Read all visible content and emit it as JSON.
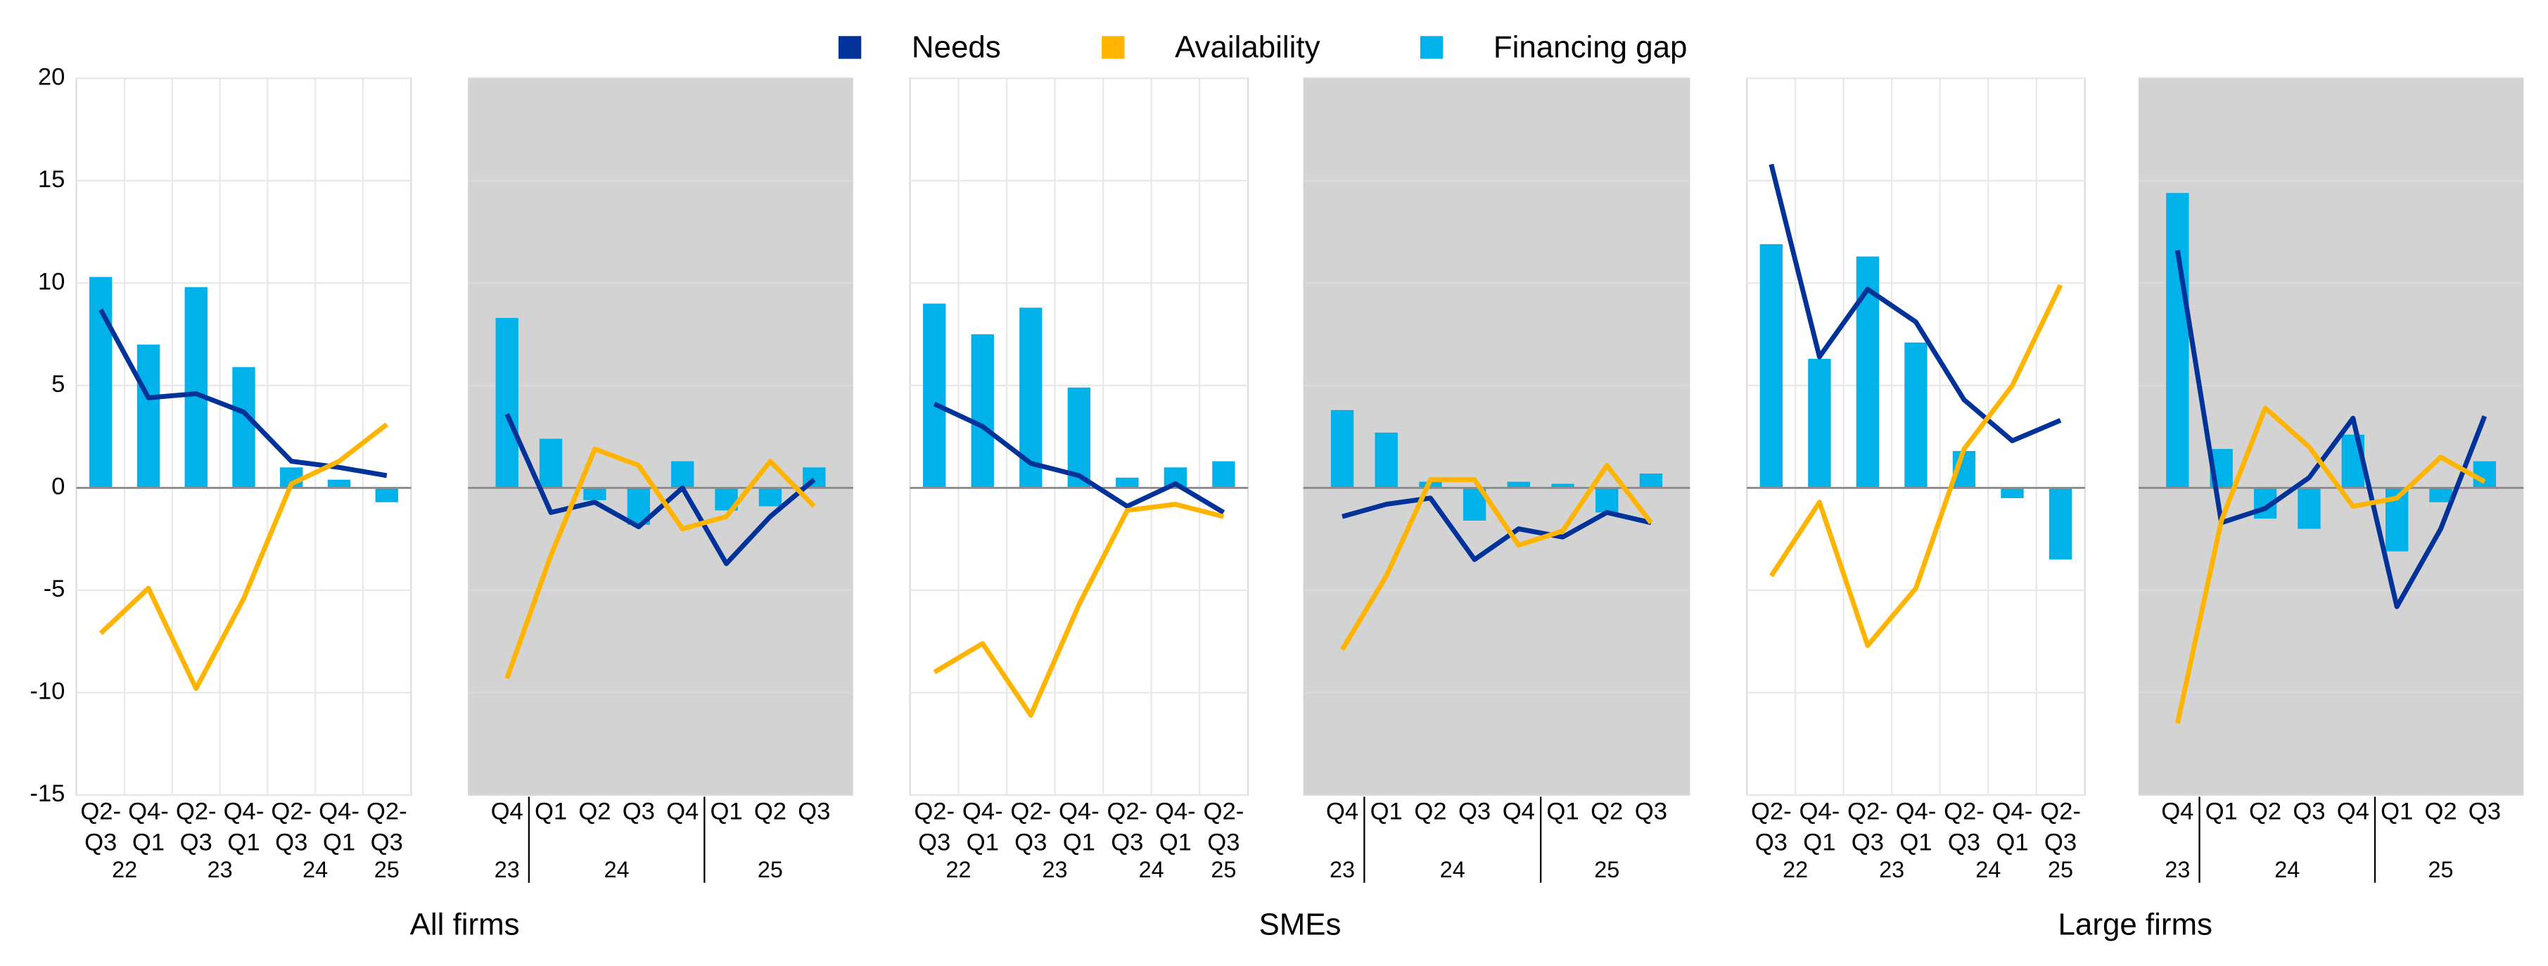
{
  "chart_data": {
    "type": "bar-line",
    "series": [
      {
        "name": "Needs",
        "color": "#003299",
        "mark": "line"
      },
      {
        "name": "Availability",
        "color": "#ffb400",
        "mark": "line"
      },
      {
        "name": "Financing gap",
        "color": "#00b1ea",
        "mark": "bar"
      }
    ],
    "ylim": [
      -15,
      20
    ],
    "yticks": [
      -15,
      -10,
      -5,
      0,
      5,
      10,
      15,
      20
    ],
    "grid": true,
    "groups": [
      {
        "title": "All firms",
        "panels": [
          {
            "shaded": false,
            "dividers": false,
            "categories": [
              [
                "Q2-",
                "Q3"
              ],
              [
                "Q4-",
                "Q1"
              ],
              [
                "Q2-",
                "Q3"
              ],
              [
                "Q4-",
                "Q1"
              ],
              [
                "Q2-",
                "Q3"
              ],
              [
                "Q4-",
                "Q1"
              ],
              [
                "Q2-",
                "Q3"
              ]
            ],
            "years": [
              "22",
              null,
              "23",
              null,
              "24",
              null,
              "25"
            ],
            "values": [
              [
                8.7,
                4.4,
                4.6,
                3.7,
                1.3,
                1.0,
                0.6
              ],
              [
                -7.1,
                -4.9,
                -9.8,
                -5.4,
                0.2,
                1.3,
                3.1
              ],
              [
                10.3,
                7.0,
                9.8,
                5.9,
                1.0,
                0.4,
                -0.7
              ]
            ]
          },
          {
            "shaded": true,
            "dividers": true,
            "categories": [
              [
                "Q4"
              ],
              [
                "Q1"
              ],
              [
                "Q2"
              ],
              [
                "Q3"
              ],
              [
                "Q4"
              ],
              [
                "Q1"
              ],
              [
                "Q2"
              ],
              [
                "Q3"
              ]
            ],
            "years": [
              "23",
              "24",
              null,
              null,
              null,
              "25",
              null,
              null
            ],
            "values": [
              [
                3.6,
                -1.2,
                -0.7,
                -1.9,
                0.0,
                -3.7,
                -1.4,
                0.4
              ],
              [
                -9.3,
                -3.3,
                1.9,
                1.1,
                -2.0,
                -1.4,
                1.3,
                -0.9
              ],
              [
                8.3,
                2.4,
                -0.6,
                -1.8,
                1.3,
                -1.1,
                -0.9,
                1.0
              ]
            ]
          }
        ]
      },
      {
        "title": "SMEs",
        "panels": [
          {
            "shaded": false,
            "dividers": false,
            "categories": [
              [
                "Q2-",
                "Q3"
              ],
              [
                "Q4-",
                "Q1"
              ],
              [
                "Q2-",
                "Q3"
              ],
              [
                "Q4-",
                "Q1"
              ],
              [
                "Q2-",
                "Q3"
              ],
              [
                "Q4-",
                "Q1"
              ],
              [
                "Q2-",
                "Q3"
              ]
            ],
            "years": [
              "22",
              null,
              "23",
              null,
              "24",
              null,
              "25"
            ],
            "values": [
              [
                4.1,
                3.0,
                1.2,
                0.6,
                -0.9,
                0.2,
                -1.2
              ],
              [
                -9.0,
                -7.6,
                -11.1,
                -5.7,
                -1.1,
                -0.8,
                -1.4
              ],
              [
                9.0,
                7.5,
                8.8,
                4.9,
                0.5,
                1.0,
                1.3
              ]
            ]
          },
          {
            "shaded": true,
            "dividers": true,
            "categories": [
              [
                "Q4"
              ],
              [
                "Q1"
              ],
              [
                "Q2"
              ],
              [
                "Q3"
              ],
              [
                "Q4"
              ],
              [
                "Q1"
              ],
              [
                "Q2"
              ],
              [
                "Q3"
              ]
            ],
            "years": [
              "23",
              "24",
              null,
              null,
              null,
              "25",
              null,
              null
            ],
            "values": [
              [
                -1.4,
                -0.8,
                -0.5,
                -3.5,
                -2.0,
                -2.4,
                -1.2,
                -1.7
              ],
              [
                -7.9,
                -4.3,
                0.4,
                0.4,
                -2.8,
                -2.1,
                1.1,
                -1.7
              ],
              [
                3.8,
                2.7,
                0.3,
                -1.6,
                0.3,
                0.2,
                -1.2,
                0.7
              ]
            ]
          }
        ]
      },
      {
        "title": "Large firms",
        "panels": [
          {
            "shaded": false,
            "dividers": false,
            "categories": [
              [
                "Q2-",
                "Q3"
              ],
              [
                "Q4-",
                "Q1"
              ],
              [
                "Q2-",
                "Q3"
              ],
              [
                "Q4-",
                "Q1"
              ],
              [
                "Q2-",
                "Q3"
              ],
              [
                "Q4-",
                "Q1"
              ],
              [
                "Q2-",
                "Q3"
              ]
            ],
            "years": [
              "22",
              null,
              "23",
              null,
              "24",
              null,
              "25"
            ],
            "values": [
              [
                15.8,
                6.4,
                9.7,
                8.1,
                4.3,
                2.3,
                3.3
              ],
              [
                -4.3,
                -0.7,
                -7.7,
                -4.9,
                1.9,
                5.0,
                9.9
              ],
              [
                11.9,
                6.3,
                11.3,
                7.1,
                1.8,
                -0.5,
                -3.5
              ]
            ]
          },
          {
            "shaded": true,
            "dividers": true,
            "categories": [
              [
                "Q4"
              ],
              [
                "Q1"
              ],
              [
                "Q2"
              ],
              [
                "Q3"
              ],
              [
                "Q4"
              ],
              [
                "Q1"
              ],
              [
                "Q2"
              ],
              [
                "Q3"
              ]
            ],
            "years": [
              "23",
              "24",
              null,
              null,
              null,
              "25",
              null,
              null
            ],
            "values": [
              [
                11.6,
                -1.7,
                -1.0,
                0.5,
                3.4,
                -5.8,
                -2.0,
                3.5
              ],
              [
                -11.5,
                -1.6,
                3.9,
                2.0,
                -0.9,
                -0.5,
                1.5,
                0.3
              ],
              [
                14.4,
                1.9,
                -1.5,
                -2.0,
                2.6,
                -3.1,
                -0.7,
                1.3
              ]
            ]
          }
        ]
      }
    ]
  }
}
